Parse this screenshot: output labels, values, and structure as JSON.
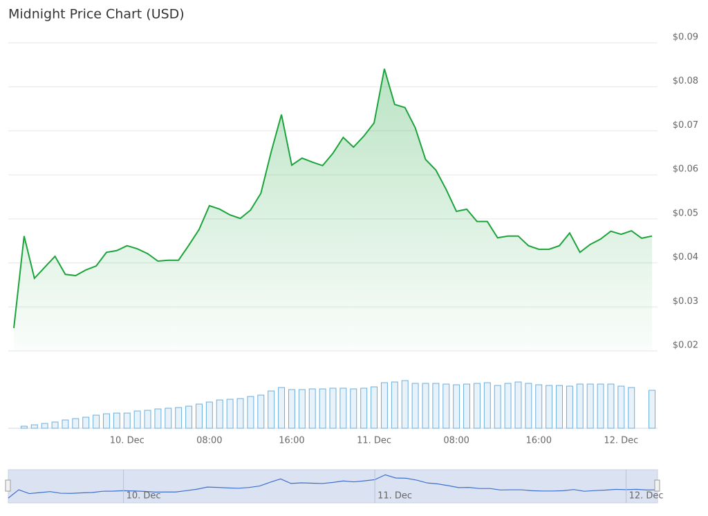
{
  "chart_data": {
    "type": "line",
    "title": "Midnight Price Chart (USD)",
    "categories": [
      null,
      null,
      null,
      null,
      null,
      null,
      null,
      null,
      null,
      null,
      null,
      "10. Dec",
      null,
      null,
      null,
      null,
      null,
      null,
      null,
      "08:00",
      null,
      null,
      null,
      null,
      null,
      null,
      null,
      "16:00",
      null,
      null,
      null,
      null,
      null,
      null,
      null,
      "11. Dec",
      null,
      null,
      null,
      null,
      null,
      null,
      null,
      "08:00",
      null,
      null,
      null,
      null,
      null,
      null,
      null,
      "16:00",
      null,
      null,
      null,
      null,
      null,
      null,
      null,
      "12. Dec",
      null,
      null,
      null
    ],
    "series": [
      {
        "color": "#1aa33a",
        "values": [
          0.0252,
          0.0461,
          0.0365,
          0.039,
          0.0415,
          0.0374,
          0.0371,
          0.0384,
          0.0393,
          0.0424,
          0.0428,
          0.0439,
          0.0432,
          0.0421,
          0.0404,
          0.0406,
          0.0406,
          0.044,
          0.0476,
          0.053,
          0.0522,
          0.0509,
          0.0501,
          0.052,
          0.0558,
          0.0652,
          0.0737,
          0.0622,
          0.0638,
          0.0629,
          0.0621,
          0.0649,
          0.0685,
          0.0663,
          0.0688,
          0.0718,
          0.0841,
          0.076,
          0.0753,
          0.0707,
          0.0635,
          0.0611,
          0.0567,
          0.0517,
          0.0522,
          0.0494,
          0.0494,
          0.0457,
          0.0461,
          0.0461,
          0.0439,
          0.0431,
          0.0431,
          0.0439,
          0.0468,
          0.0424,
          0.0442,
          0.0454,
          0.0472,
          0.0465,
          0.0473,
          0.0456,
          0.0461
        ]
      },
      {
        "type": "bar",
        "axis": "y2",
        "color": "#6aaedc",
        "values": [
          null,
          3,
          5,
          7,
          9,
          12,
          14,
          16,
          19,
          21,
          22,
          22,
          25,
          26,
          28,
          29,
          30,
          32,
          35,
          38,
          41,
          42,
          43,
          46,
          48,
          54,
          59,
          56,
          56,
          57,
          57,
          58,
          58,
          57,
          58,
          60,
          66,
          67,
          69,
          65,
          65,
          65,
          64,
          63,
          64,
          65,
          66,
          62,
          65,
          67,
          65,
          63,
          62,
          62,
          61,
          64,
          64,
          64,
          64,
          61,
          59,
          null,
          55
        ]
      }
    ],
    "ylim": [
      0.02,
      0.09
    ],
    "yticks": [
      {
        "value": 0.02,
        "label": "$0.02"
      },
      {
        "value": 0.03,
        "label": "$0.03"
      },
      {
        "value": 0.04,
        "label": "$0.04"
      },
      {
        "value": 0.05,
        "label": "$0.05"
      },
      {
        "value": 0.06,
        "label": "$0.06"
      },
      {
        "value": 0.07,
        "label": "$0.07"
      },
      {
        "value": 0.08,
        "label": "$0.08"
      },
      {
        "value": 0.09,
        "label": "$0.09"
      }
    ],
    "y2lim": [
      0,
      70
    ],
    "grid": true
  }
}
